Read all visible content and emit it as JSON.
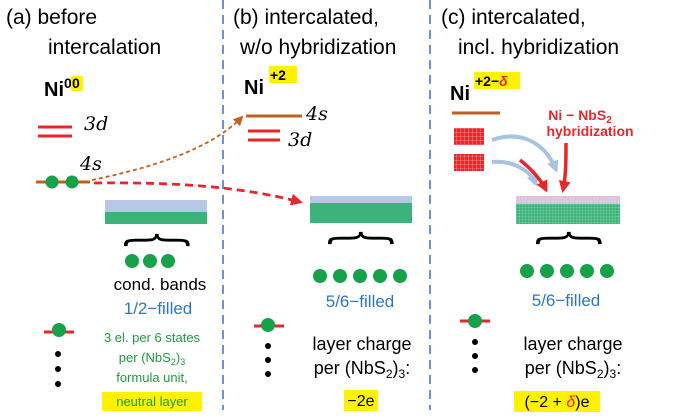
{
  "panels": [
    {
      "heading_line1": "(a) before",
      "heading_line2": "intercalation",
      "ion_base": "Ni",
      "ion_charge": "0",
      "orbital_3d": "3d",
      "orbital_4s": "4s",
      "band_label": "cond. bands",
      "fill_label": "1/2−filled",
      "note_line1": "3 el. per 6 states",
      "note_line2_a": "per (NbS",
      "note_line2_sub": "2",
      "note_line2_b": ")",
      "note_line2_sub2": "3",
      "note_line3": "formula unit,",
      "note_line4": "neutral layer"
    },
    {
      "heading_line1": "(b) intercalated,",
      "heading_line2": "w/o hybridization",
      "ion_base": "Ni",
      "ion_charge": "+2",
      "orbital_4s": "4s",
      "orbital_3d": "3d",
      "fill_label": "5/6−filled",
      "layer_line1": "layer charge",
      "layer_line2_a": "per (NbS",
      "layer_line2_sub": "2",
      "layer_line2_b": ")",
      "layer_line2_sub2": "3",
      "layer_line2_c": ":",
      "layer_value": "−2e"
    },
    {
      "heading_line1": "(c) intercalated,",
      "heading_line2": "incl. hybridization",
      "ion_base": "Ni",
      "ion_charge_a": "+2−",
      "ion_charge_delta": "δ",
      "hybrid_line1": "Ni − NbS",
      "hybrid_sub": "2",
      "hybrid_line2": "hybridization",
      "fill_label": "5/6−filled",
      "layer_line1": "layer charge",
      "layer_line2_a": "per (NbS",
      "layer_line2_sub": "2",
      "layer_line2_b": ")",
      "layer_line2_sub2": "3",
      "layer_line2_c": ":",
      "layer_value_a": "(−2 + ",
      "layer_value_delta": "δ",
      "layer_value_b": ")e"
    }
  ],
  "colors": {
    "level_red": "#e8262b",
    "level_brown": "#c0601c",
    "electron_green": "#15a24a",
    "band_green": "#3cb37a",
    "band_blue": "#b7c7e6",
    "highlight_yellow": "#fff200",
    "accent_red": "#e8262b",
    "fill_blue": "#2b78c2",
    "note_green": "#1e9a3a",
    "divider_blue": "#3a6fc4",
    "arrow_lightblue": "#a9c2e0"
  }
}
